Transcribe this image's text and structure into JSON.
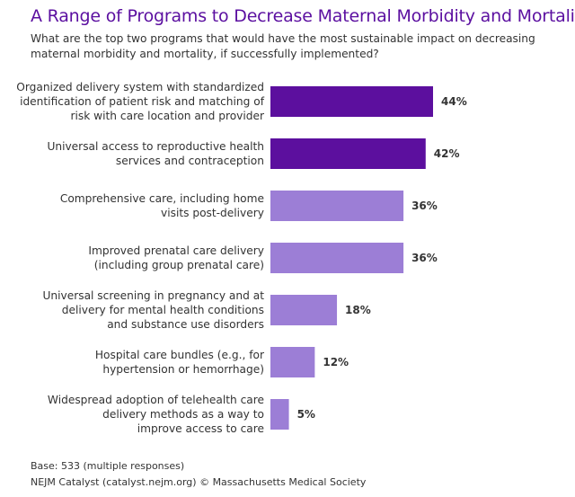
{
  "header": {
    "title": "A Range of Programs to Decrease Maternal Morbidity and Mortality",
    "subtitle": "What are the top two programs that would have the most sustainable impact on decreasing maternal morbidity and mortality, if successfully implemented?"
  },
  "footer": {
    "base": "Base: 533 (multiple responses)",
    "source": "NEJM Catalyst (catalyst.nejm.org) © Massachusetts Medical Society"
  },
  "colors": {
    "title": "#5b0fa0",
    "bar_highlight": "#5c0f9e",
    "bar_normal": "#9c7ed6",
    "text": "#333333"
  },
  "chart_data": {
    "type": "bar",
    "orientation": "horizontal",
    "title": "A Range of Programs to Decrease Maternal Morbidity and Mortality",
    "unit": "%",
    "xlim": [
      0,
      50
    ],
    "categories": [
      [
        "Organized delivery system with standardized",
        "identification of patient risk and matching of",
        "risk with care location and provider"
      ],
      [
        "Universal access to reproductive health",
        "services and contraception"
      ],
      [
        "Comprehensive care, including home",
        "visits post-delivery"
      ],
      [
        "Improved prenatal care delivery",
        "(including group prenatal care)"
      ],
      [
        "Universal screening in pregnancy and at",
        "delivery for mental health conditions",
        "and substance use disorders"
      ],
      [
        "Hospital care bundles (e.g., for",
        "hypertension or hemorrhage)"
      ],
      [
        "Widespread adoption of telehealth care",
        "delivery methods as a way to",
        "improve access to care"
      ]
    ],
    "values": [
      44,
      42,
      36,
      36,
      18,
      12,
      5
    ],
    "value_labels": [
      "44%",
      "42%",
      "36%",
      "36%",
      "18%",
      "12%",
      "5%"
    ],
    "highlighted": [
      true,
      true,
      false,
      false,
      false,
      false,
      false
    ]
  }
}
